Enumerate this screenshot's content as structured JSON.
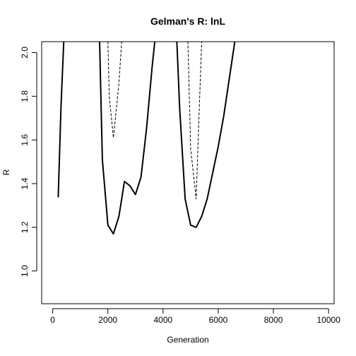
{
  "chart_data": {
    "type": "line",
    "title": "Gelman's R: lnL",
    "xlabel": "Generation",
    "ylabel": "R",
    "xlim": [
      -400,
      10200
    ],
    "ylim": [
      0.85,
      2.05
    ],
    "xticks": [
      0,
      2000,
      4000,
      6000,
      8000,
      10000
    ],
    "yticks": [
      1.0,
      1.2,
      1.4,
      1.6,
      1.8,
      2.0
    ],
    "ytick_labels": [
      "1.0",
      "1.2",
      "1.4",
      "1.6",
      "1.8",
      "2.0"
    ],
    "grid": false,
    "legend": "none",
    "series": [
      {
        "style": "solid",
        "color": "#000000",
        "segments": [
          [
            [
              200,
              1.34
            ],
            [
              300,
              1.75
            ],
            [
              400,
              2.05
            ]
          ],
          [
            [
              1700,
              2.05
            ],
            [
              1800,
              1.51
            ],
            [
              2000,
              1.21
            ],
            [
              2200,
              1.17
            ],
            [
              2400,
              1.25
            ],
            [
              2600,
              1.41
            ],
            [
              2800,
              1.39
            ],
            [
              3000,
              1.35
            ],
            [
              3200,
              1.43
            ],
            [
              3400,
              1.65
            ],
            [
              3600,
              1.93
            ],
            [
              3700,
              2.05
            ]
          ],
          [
            [
              4500,
              2.05
            ],
            [
              4600,
              1.75
            ],
            [
              4800,
              1.33
            ],
            [
              5000,
              1.21
            ],
            [
              5200,
              1.2
            ],
            [
              5400,
              1.25
            ],
            [
              5600,
              1.33
            ],
            [
              5800,
              1.45
            ],
            [
              6000,
              1.57
            ],
            [
              6200,
              1.71
            ],
            [
              6400,
              1.88
            ],
            [
              6600,
              2.05
            ]
          ]
        ]
      },
      {
        "style": "dashed",
        "color": "#000000",
        "segments": [
          [
            [
              2000,
              2.05
            ],
            [
              2050,
              1.8
            ],
            [
              2200,
              1.61
            ],
            [
              2400,
              1.86
            ],
            [
              2500,
              2.05
            ]
          ],
          [
            [
              4900,
              2.05
            ],
            [
              5000,
              1.56
            ],
            [
              5200,
              1.33
            ],
            [
              5300,
              1.7
            ],
            [
              5400,
              2.05
            ]
          ]
        ]
      }
    ]
  }
}
